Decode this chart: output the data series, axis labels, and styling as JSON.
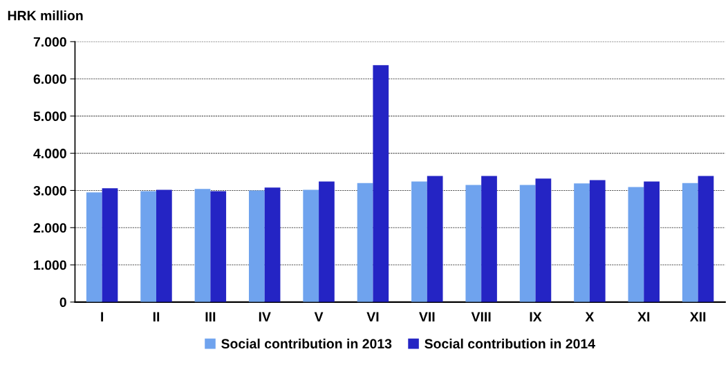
{
  "chart_data": {
    "type": "bar",
    "ylabel": "HRK million",
    "categories": [
      "I",
      "II",
      "III",
      "IV",
      "V",
      "VI",
      "VII",
      "VIII",
      "IX",
      "X",
      "XI",
      "XII"
    ],
    "series": [
      {
        "name": "Social contribution in 2013",
        "color": "#6fa3ee",
        "values": [
          2950,
          2980,
          3040,
          3000,
          3020,
          3200,
          3240,
          3150,
          3150,
          3190,
          3090,
          3200
        ]
      },
      {
        "name": "Social contribution in 2014",
        "color": "#2424c4",
        "values": [
          3060,
          3020,
          2980,
          3080,
          3240,
          6370,
          3390,
          3390,
          3320,
          3280,
          3240,
          3390
        ]
      }
    ],
    "ylim": [
      0,
      7000
    ],
    "yticks": [
      {
        "value": 0,
        "label": "0"
      },
      {
        "value": 1000,
        "label": "1.000"
      },
      {
        "value": 2000,
        "label": "2.000"
      },
      {
        "value": 3000,
        "label": "3.000"
      },
      {
        "value": 4000,
        "label": "4.000"
      },
      {
        "value": 5000,
        "label": "5.000"
      },
      {
        "value": 6000,
        "label": "6.000"
      },
      {
        "value": 7000,
        "label": "7.000"
      }
    ],
    "grid": "y",
    "legend": "bottom"
  }
}
